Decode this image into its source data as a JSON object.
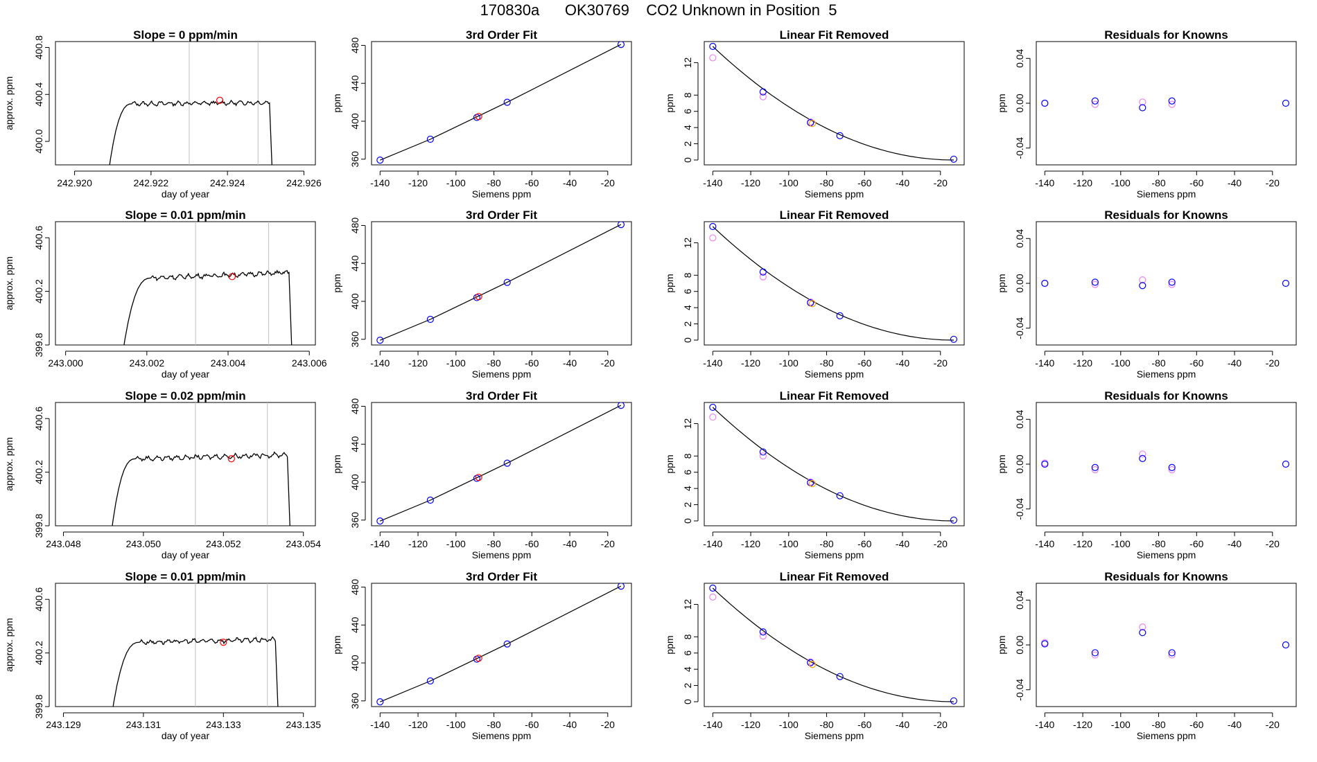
{
  "figure": {
    "title": "170830a      OK30769    CO2 Unknown in Position  5"
  },
  "colors": {
    "axis": "#000000",
    "trace": "#000000",
    "vline": "#bebebe",
    "marker_red": "#ff0000",
    "marker_blue": "#0000ff",
    "marker_violet": "#ee82ee",
    "marker_orange": "#ffa500"
  },
  "chart_data": [
    {
      "type": "line",
      "row": 0,
      "col": 0,
      "title": "Slope =  0  ppm/min",
      "xlabel": "day of year",
      "ylabel": "approx. ppm",
      "xlim": [
        242.9195,
        242.9263
      ],
      "ylim": [
        399.8,
        400.85
      ],
      "xticks": [
        242.92,
        242.922,
        242.924,
        242.926
      ],
      "xtick_labels": [
        "242.920",
        "242.922",
        "242.924",
        "242.926"
      ],
      "yticks": [
        400.0,
        400.4,
        400.8
      ],
      "ytick_labels": [
        "400.0",
        "400.4",
        "400.8"
      ],
      "t_start": 242.9208,
      "t_plateau": 242.9215,
      "t_end": 242.9251,
      "t_drop": 242.9252,
      "level": 400.32,
      "level_end": 400.33,
      "vlines": [
        242.923,
        242.9248
      ],
      "marker": {
        "x": 242.9238,
        "y": 400.35
      }
    },
    {
      "type": "scatter",
      "row": 0,
      "col": 1,
      "title": "3rd Order Fit",
      "xlabel": "Siemens ppm",
      "ylabel": "ppm",
      "xlim": [
        -144.5,
        -7.5
      ],
      "ylim": [
        354,
        484
      ],
      "xticks": [
        -140,
        -120,
        -100,
        -80,
        -60,
        -40,
        -20
      ],
      "yticks": [
        360,
        400,
        440,
        480
      ],
      "fit": {
        "x": [
          -140,
          -113.5,
          -73,
          -13
        ],
        "y": [
          359,
          381,
          420,
          481
        ]
      },
      "points_blue": {
        "x": [
          -140,
          -113.5,
          -89,
          -73,
          -13
        ],
        "y": [
          359,
          381,
          404,
          420,
          481
        ]
      },
      "points_red": {
        "x": [
          -88
        ],
        "y": [
          405
        ]
      }
    },
    {
      "type": "scatter",
      "row": 0,
      "col": 2,
      "title": "Linear Fit Removed",
      "xlabel": "Siemens ppm",
      "ylabel": "ppm",
      "xlim": [
        -144.5,
        -7.5
      ],
      "ylim": [
        -0.6,
        14.6
      ],
      "xticks": [
        -140,
        -120,
        -100,
        -80,
        -60,
        -40,
        -20
      ],
      "yticks": [
        0,
        2,
        4,
        6,
        8,
        12
      ],
      "curve": {
        "x0": -140,
        "x1": -13,
        "y0": 14.0
      },
      "points_blue": {
        "x": [
          -140,
          -113.5,
          -88.5,
          -73,
          -13
        ],
        "y": [
          14.0,
          8.4,
          4.6,
          3.0,
          0.1
        ]
      },
      "points_violet": {
        "x": [
          -140,
          -113.5,
          -88.5
        ],
        "y": [
          12.6,
          7.8,
          4.7
        ]
      },
      "points_orange": {
        "x": [
          -87.5
        ],
        "y": [
          4.5
        ]
      }
    },
    {
      "type": "scatter",
      "row": 0,
      "col": 3,
      "title": "Residuals for Knowns",
      "xlabel": "Siemens ppm",
      "ylabel": "ppm",
      "xlim": [
        -144.5,
        -7.5
      ],
      "ylim": [
        -0.055,
        0.055
      ],
      "xticks": [
        -140,
        -120,
        -100,
        -80,
        -60,
        -40,
        -20
      ],
      "yticks": [
        -0.04,
        0.0,
        0.04
      ],
      "ytick_labels": [
        "-0.04",
        "0.00",
        "0.04"
      ],
      "points_blue": {
        "x": [
          -140,
          -113.5,
          -88.5,
          -73,
          -13
        ],
        "y": [
          0.0,
          0.002,
          -0.004,
          0.002,
          0.0
        ]
      },
      "points_violet": {
        "x": [
          -140,
          -113.5,
          -88.5,
          -73
        ],
        "y": [
          0.0,
          -0.001,
          0.001,
          -0.001
        ]
      }
    },
    {
      "type": "line",
      "row": 1,
      "col": 0,
      "title": "Slope =  0.01  ppm/min",
      "xlabel": "day of year",
      "ylabel": "approx. ppm",
      "xlim": [
        242.99975,
        243.00615
      ],
      "ylim": [
        399.8,
        400.72
      ],
      "xticks": [
        243.0,
        243.002,
        243.004,
        243.006
      ],
      "xtick_labels": [
        "243.000",
        "243.002",
        "243.004",
        "243.006"
      ],
      "yticks": [
        399.8,
        400.2,
        400.6
      ],
      "ytick_labels": [
        "399.8",
        "400.2",
        "400.6"
      ],
      "t_start": 243.0013,
      "t_plateau": 243.0021,
      "t_end": 243.0055,
      "t_drop": 243.0056,
      "level": 400.3,
      "level_end": 400.34,
      "vlines": [
        243.0032,
        243.005
      ],
      "marker": {
        "x": 243.0041,
        "y": 400.31
      }
    },
    {
      "type": "scatter",
      "row": 1,
      "col": 1,
      "title": "3rd Order Fit",
      "xlabel": "Siemens ppm",
      "ylabel": "ppm",
      "xlim": [
        -144.5,
        -7.5
      ],
      "ylim": [
        354,
        484
      ],
      "xticks": [
        -140,
        -120,
        -100,
        -80,
        -60,
        -40,
        -20
      ],
      "yticks": [
        360,
        400,
        440,
        480
      ],
      "fit": {
        "x": [
          -140,
          -113.5,
          -73,
          -13
        ],
        "y": [
          359,
          381,
          420,
          481
        ]
      },
      "points_blue": {
        "x": [
          -140,
          -113.5,
          -89,
          -73,
          -13
        ],
        "y": [
          359,
          381,
          404,
          420,
          481
        ]
      },
      "points_red": {
        "x": [
          -88
        ],
        "y": [
          405
        ]
      }
    },
    {
      "type": "scatter",
      "row": 1,
      "col": 2,
      "title": "Linear Fit Removed",
      "xlabel": "Siemens ppm",
      "ylabel": "ppm",
      "xlim": [
        -144.5,
        -7.5
      ],
      "ylim": [
        -0.6,
        14.6
      ],
      "xticks": [
        -140,
        -120,
        -100,
        -80,
        -60,
        -40,
        -20
      ],
      "yticks": [
        0,
        2,
        4,
        6,
        8,
        12
      ],
      "curve": {
        "x0": -140,
        "x1": -13,
        "y0": 14.0
      },
      "points_blue": {
        "x": [
          -140,
          -113.5,
          -88.5,
          -73,
          -13
        ],
        "y": [
          14.0,
          8.4,
          4.6,
          3.0,
          0.1
        ]
      },
      "points_violet": {
        "x": [
          -140,
          -113.5,
          -88.5
        ],
        "y": [
          12.6,
          7.8,
          4.7
        ]
      },
      "points_orange": {
        "x": [
          -87.5
        ],
        "y": [
          4.5
        ]
      }
    },
    {
      "type": "scatter",
      "row": 1,
      "col": 3,
      "title": "Residuals for Knowns",
      "xlabel": "Siemens ppm",
      "ylabel": "ppm",
      "xlim": [
        -144.5,
        -7.5
      ],
      "ylim": [
        -0.055,
        0.055
      ],
      "xticks": [
        -140,
        -120,
        -100,
        -80,
        -60,
        -40,
        -20
      ],
      "yticks": [
        -0.04,
        0.0,
        0.04
      ],
      "ytick_labels": [
        "-0.04",
        "0.00",
        "0.04"
      ],
      "points_blue": {
        "x": [
          -140,
          -113.5,
          -88.5,
          -73,
          -13
        ],
        "y": [
          0.0,
          0.001,
          -0.002,
          0.001,
          0.0
        ]
      },
      "points_violet": {
        "x": [
          -140,
          -113.5,
          -88.5,
          -73
        ],
        "y": [
          0.0,
          -0.001,
          0.003,
          -0.001
        ]
      }
    },
    {
      "type": "line",
      "row": 2,
      "col": 0,
      "title": "Slope =  0.02  ppm/min",
      "xlabel": "day of year",
      "ylabel": "approx. ppm",
      "xlim": [
        243.0478,
        243.0543
      ],
      "ylim": [
        399.8,
        400.72
      ],
      "xticks": [
        243.048,
        243.05,
        243.052,
        243.054
      ],
      "xtick_labels": [
        "243.048",
        "243.050",
        "243.052",
        "243.054"
      ],
      "yticks": [
        399.8,
        400.2,
        400.6
      ],
      "ytick_labels": [
        "399.8",
        "400.2",
        "400.6"
      ],
      "t_start": 243.0491,
      "t_plateau": 243.0498,
      "t_end": 243.0536,
      "t_drop": 243.0537,
      "level": 400.3,
      "level_end": 400.33,
      "vlines": [
        243.0513,
        243.0531
      ],
      "marker": {
        "x": 243.0522,
        "y": 400.3
      }
    },
    {
      "type": "scatter",
      "row": 2,
      "col": 1,
      "title": "3rd Order Fit",
      "xlabel": "Siemens ppm",
      "ylabel": "ppm",
      "xlim": [
        -144.5,
        -7.5
      ],
      "ylim": [
        354,
        484
      ],
      "xticks": [
        -140,
        -120,
        -100,
        -80,
        -60,
        -40,
        -20
      ],
      "yticks": [
        360,
        400,
        440,
        480
      ],
      "fit": {
        "x": [
          -140,
          -113.5,
          -73,
          -13
        ],
        "y": [
          359,
          381,
          420,
          481
        ]
      },
      "points_blue": {
        "x": [
          -140,
          -113.5,
          -89,
          -73,
          -13
        ],
        "y": [
          359,
          381,
          404,
          420,
          481
        ]
      },
      "points_red": {
        "x": [
          -88
        ],
        "y": [
          405
        ]
      }
    },
    {
      "type": "scatter",
      "row": 2,
      "col": 2,
      "title": "Linear Fit Removed",
      "xlabel": "Siemens ppm",
      "ylabel": "ppm",
      "xlim": [
        -144.5,
        -7.5
      ],
      "ylim": [
        -0.6,
        14.6
      ],
      "xticks": [
        -140,
        -120,
        -100,
        -80,
        -60,
        -40,
        -20
      ],
      "yticks": [
        0,
        2,
        4,
        6,
        8,
        12
      ],
      "curve": {
        "x0": -140,
        "x1": -13,
        "y0": 14.0
      },
      "points_blue": {
        "x": [
          -140,
          -113.5,
          -88.5,
          -73,
          -13
        ],
        "y": [
          14.0,
          8.5,
          4.7,
          3.1,
          0.1
        ]
      },
      "points_violet": {
        "x": [
          -140,
          -113.5,
          -88.5
        ],
        "y": [
          12.8,
          8.0,
          4.8
        ]
      },
      "points_orange": {
        "x": [
          -87.5
        ],
        "y": [
          4.6
        ]
      }
    },
    {
      "type": "scatter",
      "row": 2,
      "col": 3,
      "title": "Residuals for Knowns",
      "xlabel": "Siemens ppm",
      "ylabel": "ppm",
      "xlim": [
        -144.5,
        -7.5
      ],
      "ylim": [
        -0.055,
        0.055
      ],
      "xticks": [
        -140,
        -120,
        -100,
        -80,
        -60,
        -40,
        -20
      ],
      "yticks": [
        -0.04,
        0.0,
        0.04
      ],
      "ytick_labels": [
        "-0.04",
        "0.00",
        "0.04"
      ],
      "points_blue": {
        "x": [
          -140,
          -113.5,
          -88.5,
          -73,
          -13
        ],
        "y": [
          0.0,
          -0.003,
          0.005,
          -0.003,
          0.0
        ]
      },
      "points_violet": {
        "x": [
          -140,
          -113.5,
          -88.5,
          -73
        ],
        "y": [
          0.001,
          -0.005,
          0.009,
          -0.005
        ]
      }
    },
    {
      "type": "line",
      "row": 3,
      "col": 0,
      "title": "Slope =  0.01  ppm/min",
      "xlabel": "day of year",
      "ylabel": "approx. ppm",
      "xlim": [
        243.1288,
        243.1353
      ],
      "ylim": [
        399.8,
        400.72
      ],
      "xticks": [
        243.129,
        243.131,
        243.133,
        243.135
      ],
      "xtick_labels": [
        "243.129",
        "243.131",
        "243.133",
        "243.135"
      ],
      "yticks": [
        399.8,
        400.2,
        400.6
      ],
      "ytick_labels": [
        "399.8",
        "400.2",
        "400.6"
      ],
      "t_start": 243.1301,
      "t_plateau": 243.1309,
      "t_end": 243.1343,
      "t_drop": 243.1344,
      "level": 400.28,
      "level_end": 400.3,
      "vlines": [
        243.1323,
        243.1341
      ],
      "marker": {
        "x": 243.133,
        "y": 400.28
      }
    },
    {
      "type": "scatter",
      "row": 3,
      "col": 1,
      "title": "3rd Order Fit",
      "xlabel": "Siemens ppm",
      "ylabel": "ppm",
      "xlim": [
        -144.5,
        -7.5
      ],
      "ylim": [
        354,
        484
      ],
      "xticks": [
        -140,
        -120,
        -100,
        -80,
        -60,
        -40,
        -20
      ],
      "yticks": [
        360,
        400,
        440,
        480
      ],
      "fit": {
        "x": [
          -140,
          -113.5,
          -73,
          -13
        ],
        "y": [
          359,
          381,
          420,
          481
        ]
      },
      "points_blue": {
        "x": [
          -140,
          -113.5,
          -89,
          -73,
          -13
        ],
        "y": [
          359,
          381,
          404,
          420,
          481
        ]
      },
      "points_red": {
        "x": [
          -88
        ],
        "y": [
          405
        ]
      }
    },
    {
      "type": "scatter",
      "row": 3,
      "col": 2,
      "title": "Linear Fit Removed",
      "xlabel": "Siemens ppm",
      "ylabel": "ppm",
      "xlim": [
        -144.5,
        -7.5
      ],
      "ylim": [
        -0.6,
        14.6
      ],
      "xticks": [
        -140,
        -120,
        -100,
        -80,
        -60,
        -40,
        -20
      ],
      "yticks": [
        0,
        2,
        4,
        6,
        8,
        12
      ],
      "curve": {
        "x0": -140,
        "x1": -13,
        "y0": 14.0
      },
      "points_blue": {
        "x": [
          -140,
          -113.5,
          -88.5,
          -73,
          -13
        ],
        "y": [
          14.0,
          8.6,
          4.8,
          3.1,
          0.1
        ]
      },
      "points_violet": {
        "x": [
          -140,
          -113.5,
          -88.5
        ],
        "y": [
          12.9,
          8.1,
          4.9
        ]
      },
      "points_orange": {
        "x": [
          -87.5
        ],
        "y": [
          4.6
        ]
      }
    },
    {
      "type": "scatter",
      "row": 3,
      "col": 3,
      "title": "Residuals for Knowns",
      "xlabel": "Siemens ppm",
      "ylabel": "ppm",
      "xlim": [
        -144.5,
        -7.5
      ],
      "ylim": [
        -0.055,
        0.055
      ],
      "xticks": [
        -140,
        -120,
        -100,
        -80,
        -60,
        -40,
        -20
      ],
      "yticks": [
        -0.04,
        0.0,
        0.04
      ],
      "ytick_labels": [
        "-0.04",
        "0.00",
        "0.04"
      ],
      "points_blue": {
        "x": [
          -140,
          -113.5,
          -88.5,
          -73,
          -13
        ],
        "y": [
          0.001,
          -0.007,
          0.011,
          -0.007,
          0.0
        ]
      },
      "points_violet": {
        "x": [
          -140,
          -113.5,
          -88.5,
          -73
        ],
        "y": [
          0.002,
          -0.009,
          0.016,
          -0.009
        ]
      }
    }
  ]
}
